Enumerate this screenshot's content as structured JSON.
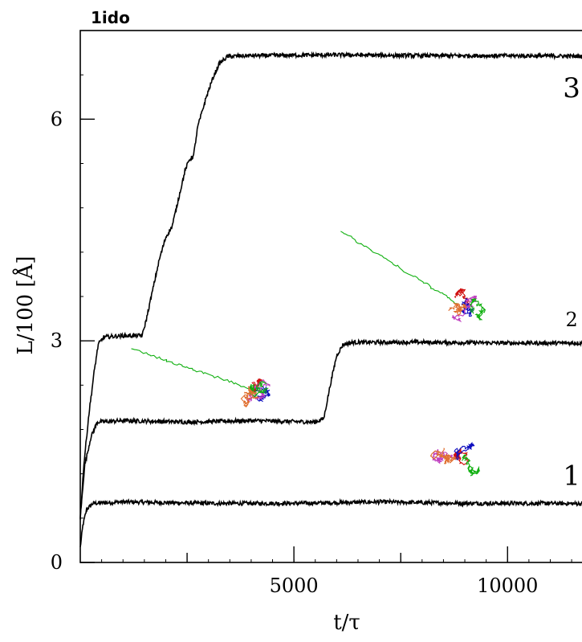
{
  "chart_data": {
    "type": "line",
    "title": "1ido",
    "xlabel": "t/τ",
    "ylabel": "L/100 [Å]",
    "xlim": [
      0,
      12400
    ],
    "ylim": [
      0,
      7.2
    ],
    "x_ticks": [
      5000,
      10000
    ],
    "y_ticks": [
      0,
      3,
      6
    ],
    "grid": false,
    "series": [
      {
        "name": "1",
        "color": "#000000",
        "points": [
          [
            0,
            0.2
          ],
          [
            60,
            0.5
          ],
          [
            150,
            0.72
          ],
          [
            300,
            0.8
          ],
          [
            1000,
            0.82
          ],
          [
            3000,
            0.8
          ],
          [
            5000,
            0.8
          ],
          [
            7000,
            0.82
          ],
          [
            9000,
            0.8
          ],
          [
            11000,
            0.8
          ],
          [
            12400,
            0.79
          ]
        ]
      },
      {
        "name": "2",
        "color": "#000000",
        "points": [
          [
            0,
            0.6
          ],
          [
            100,
            1.3
          ],
          [
            250,
            1.7
          ],
          [
            400,
            1.9
          ],
          [
            1000,
            1.92
          ],
          [
            2500,
            1.9
          ],
          [
            4000,
            1.92
          ],
          [
            5500,
            1.9
          ],
          [
            5700,
            1.95
          ],
          [
            5850,
            2.4
          ],
          [
            6000,
            2.8
          ],
          [
            6150,
            2.95
          ],
          [
            6400,
            2.98
          ],
          [
            8000,
            2.98
          ],
          [
            10000,
            2.97
          ],
          [
            12400,
            2.97
          ]
        ]
      },
      {
        "name": "3",
        "color": "#000000",
        "points": [
          [
            0,
            0.6
          ],
          [
            80,
            1.3
          ],
          [
            200,
            2.0
          ],
          [
            330,
            2.6
          ],
          [
            420,
            2.95
          ],
          [
            550,
            3.05
          ],
          [
            1000,
            3.07
          ],
          [
            1450,
            3.07
          ],
          [
            1550,
            3.3
          ],
          [
            1700,
            3.7
          ],
          [
            1850,
            4.1
          ],
          [
            2000,
            4.4
          ],
          [
            2150,
            4.55
          ],
          [
            2250,
            4.8
          ],
          [
            2350,
            5.05
          ],
          [
            2450,
            5.3
          ],
          [
            2550,
            5.45
          ],
          [
            2650,
            5.5
          ],
          [
            2750,
            5.9
          ],
          [
            2850,
            6.1
          ],
          [
            2950,
            6.3
          ],
          [
            3100,
            6.55
          ],
          [
            3250,
            6.75
          ],
          [
            3450,
            6.85
          ],
          [
            4000,
            6.86
          ],
          [
            6000,
            6.87
          ],
          [
            8000,
            6.86
          ],
          [
            10000,
            6.86
          ],
          [
            12400,
            6.85
          ]
        ]
      }
    ],
    "annotations": [
      {
        "text": "3",
        "x": 11500,
        "y": 6.3,
        "size": "large"
      },
      {
        "text": "2",
        "x": 11500,
        "y": 3.2,
        "size": "small"
      },
      {
        "text": "1",
        "x": 11500,
        "y": 1.05,
        "size": "large"
      }
    ],
    "insets": [
      {
        "name": "partially-unfolded-protein",
        "x": 4200,
        "y": 2.35
      },
      {
        "name": "more-unfolded-protein",
        "x": 9100,
        "y": 3.45
      },
      {
        "name": "folded-protein",
        "x": 8800,
        "y": 1.4
      }
    ]
  }
}
